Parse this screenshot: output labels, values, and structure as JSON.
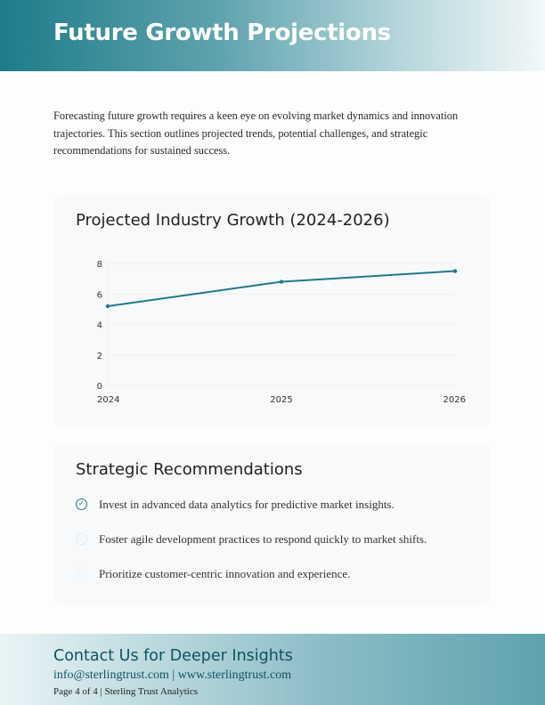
{
  "header": {
    "title": "Future Growth Projections"
  },
  "intro": "Forecasting future growth requires a keen eye on evolving market dynamics and innovation trajectories. This section outlines projected trends, potential challenges, and strategic recommendations for sustained success.",
  "chart_card": {
    "title": "Projected Industry Growth (2024-2026)"
  },
  "chart_data": {
    "type": "line",
    "title": "Projected Industry Growth (2024-2026)",
    "categories": [
      "2024",
      "2025",
      "2026"
    ],
    "values": [
      5.2,
      6.8,
      7.5
    ],
    "ylim": [
      0,
      8
    ],
    "yticks": [
      "0",
      "2",
      "4",
      "6",
      "8"
    ],
    "grid": true,
    "color": "#1e7b8a"
  },
  "recommendations": {
    "title": "Strategic Recommendations",
    "items": [
      {
        "text": "Invest in advanced data analytics for predictive market insights.",
        "icon": "check-circle-icon",
        "opacity": 1
      },
      {
        "text": "Foster agile development practices to respond quickly to market shifts.",
        "icon": "check-circle-icon",
        "opacity": 0.1
      },
      {
        "text": "Prioritize customer-centric innovation and experience.",
        "icon": "check-circle-icon",
        "opacity": 0.04
      }
    ]
  },
  "footer": {
    "title": "Contact Us for Deeper Insights",
    "contact": "info@sterlingtrust.com | www.sterlingtrust.com",
    "page": "Page 4 of 4 | Sterling Trust Analytics"
  }
}
